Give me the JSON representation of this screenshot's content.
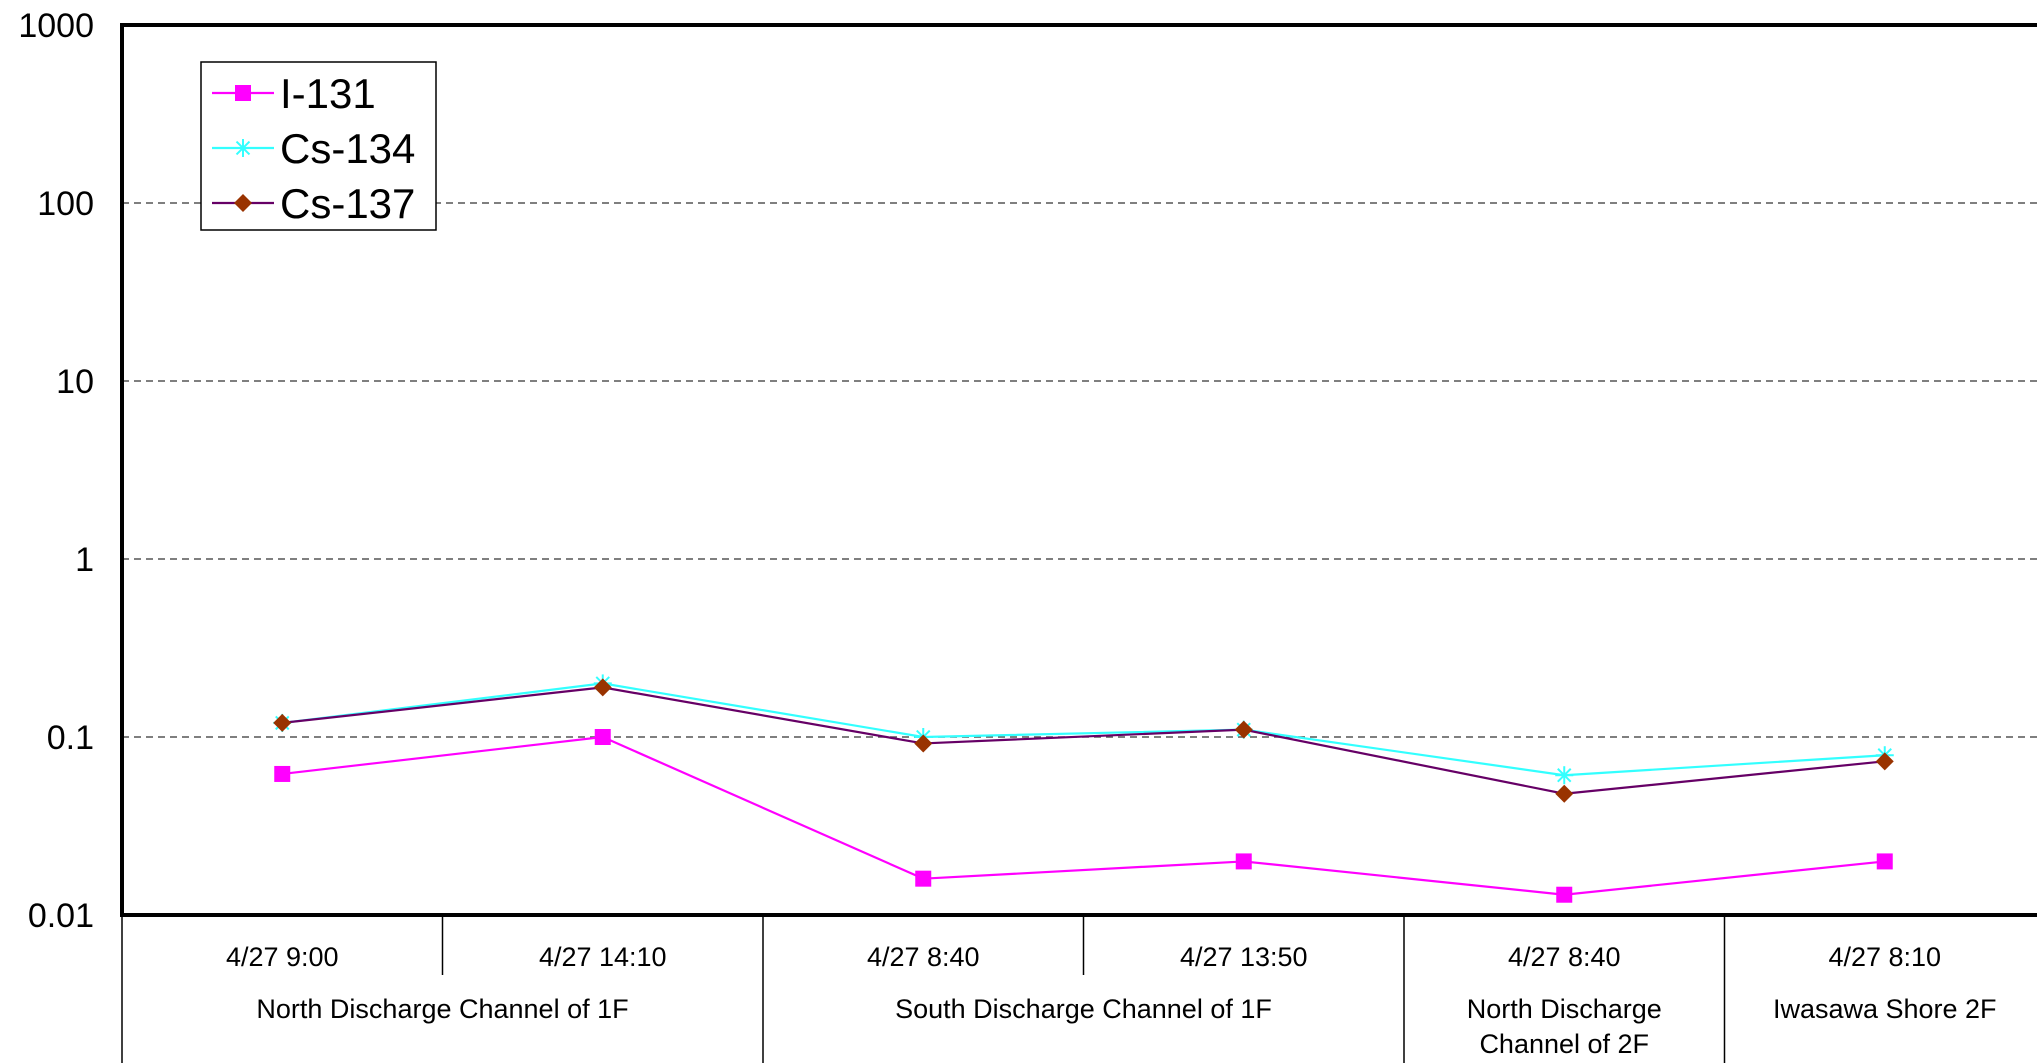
{
  "chart_data": {
    "type": "line",
    "y_scale": "log",
    "ylim": [
      0.01,
      1000
    ],
    "grid": "horizontal dashed",
    "legend_position": "top-left",
    "y_ticks": [
      "0.01",
      "0.1",
      "1",
      "10",
      "100",
      "1000"
    ],
    "categories": [
      "4/27 9:00",
      "4/27 14:10",
      "4/27 8:40",
      "4/27 13:50",
      "4/27 8:40",
      "4/27 8:10"
    ],
    "groups": [
      {
        "label": "North Discharge Channel of 1F",
        "lines": [
          "North Discharge Channel of 1F"
        ],
        "span": [
          0,
          1
        ]
      },
      {
        "label": "South Discharge Channel of 1F",
        "lines": [
          "South Discharge Channel of 1F"
        ],
        "span": [
          2,
          3
        ]
      },
      {
        "label": "North Discharge Channel of 2F",
        "lines": [
          "North Discharge",
          "Channel of 2F"
        ],
        "span": [
          4,
          4
        ]
      },
      {
        "label": "Iwasawa Shore 2F",
        "lines": [
          "Iwasawa Shore 2F"
        ],
        "span": [
          5,
          5
        ]
      }
    ],
    "series": [
      {
        "name": "I-131",
        "color": "#FF00FF",
        "marker": "square",
        "values": [
          0.062,
          0.1,
          0.016,
          0.02,
          0.013,
          0.02
        ]
      },
      {
        "name": "Cs-134",
        "color": "#33FFFF",
        "marker": "asterisk",
        "values": [
          0.12,
          0.2,
          0.1,
          0.11,
          0.061,
          0.079
        ]
      },
      {
        "name": "Cs-137",
        "color": "#660066",
        "marker_color": "#993300",
        "marker": "diamond",
        "values": [
          0.12,
          0.19,
          0.092,
          0.11,
          0.048,
          0.073
        ]
      }
    ]
  }
}
